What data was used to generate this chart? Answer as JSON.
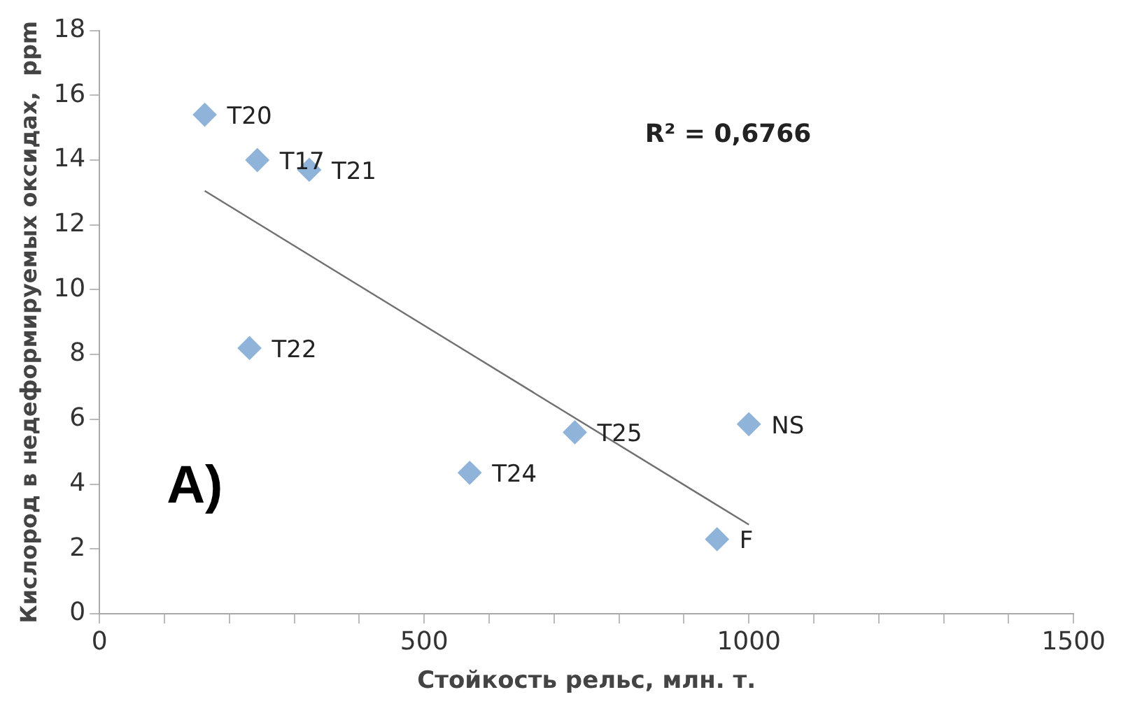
{
  "chart_data": {
    "type": "scatter",
    "xlabel": "Стойкость рельс, млн. т.",
    "ylabel": "Кислород в недеформируемых оксидах,  ppm",
    "x": [
      162,
      243,
      323,
      231,
      570,
      732,
      1000,
      951
    ],
    "series": [
      {
        "color": "#8fb3d9",
        "marker": "diamond",
        "values": [
          15.4,
          14.0,
          13.7,
          8.2,
          4.35,
          5.6,
          5.85,
          2.3
        ]
      },
      {
        "type": "line",
        "color": "#707070",
        "marker": "none",
        "x": [
          162,
          1000
        ],
        "values": [
          13.05,
          2.75
        ]
      }
    ],
    "xlim": [
      0,
      1500
    ],
    "xticks": [
      0,
      {
        "value": 100,
        "label": null
      },
      {
        "value": 200,
        "label": null
      },
      {
        "value": 300,
        "label": null
      },
      {
        "value": 400,
        "label": null
      },
      500,
      {
        "value": 600,
        "label": null
      },
      {
        "value": 700,
        "label": null
      },
      {
        "value": 800,
        "label": null
      },
      {
        "value": 900,
        "label": null
      },
      1000,
      {
        "value": 1100,
        "label": null
      },
      {
        "value": 1200,
        "label": null
      },
      {
        "value": 1300,
        "label": null
      },
      {
        "value": 1400,
        "label": null
      },
      1500
    ],
    "ylim": [
      0,
      18
    ],
    "yticks": [
      0,
      2,
      4,
      6,
      8,
      10,
      12,
      14,
      16,
      18
    ],
    "grid": false,
    "legend": false,
    "annotations": [
      {
        "text": "T20",
        "x": 162,
        "y": 15.4
      },
      {
        "text": "T17",
        "x": 243,
        "y": 14.0
      },
      {
        "text": "T21",
        "x": 323,
        "y": 13.7
      },
      {
        "text": "T22",
        "x": 231,
        "y": 8.2
      },
      {
        "text": "T24",
        "x": 570,
        "y": 4.35
      },
      {
        "text": "T25",
        "x": 732,
        "y": 5.6
      },
      {
        "text": "NS",
        "x": 1000,
        "y": 5.85
      },
      {
        "text": "F",
        "x": 951,
        "y": 2.3
      },
      "R² = 0,6766",
      "A)"
    ]
  }
}
